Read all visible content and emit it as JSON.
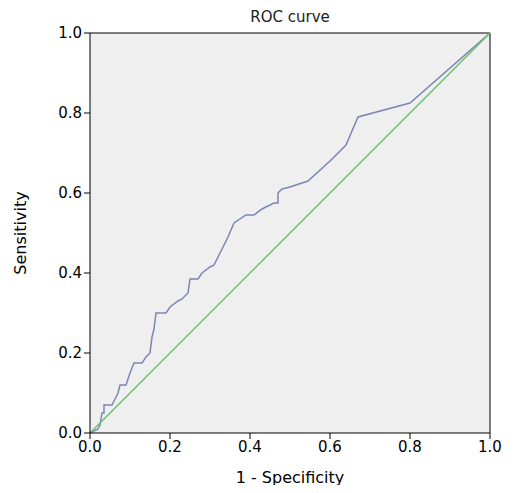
{
  "chart_data": {
    "type": "line",
    "title": "ROC curve",
    "x_label": "1 - Specificity",
    "y_label": "Sensitivity",
    "xlim": [
      0,
      1
    ],
    "ylim": [
      0,
      1
    ],
    "xticks": [
      {
        "value": 0,
        "label": "0.0"
      },
      0.2,
      0.4,
      0.6,
      0.8,
      {
        "value": 1,
        "label": "1.0"
      }
    ],
    "yticks": [
      {
        "value": 0,
        "label": "0.0"
      },
      0.2,
      0.4,
      0.6,
      0.8,
      {
        "value": 1,
        "label": "1.0"
      }
    ],
    "grid": false,
    "series": [
      {
        "color": "#7b86b6",
        "x": [
          0.0,
          0.02,
          0.025,
          0.03,
          0.035,
          0.035,
          0.055,
          0.06,
          0.065,
          0.07,
          0.075,
          0.09,
          0.1,
          0.11,
          0.13,
          0.14,
          0.15,
          0.155,
          0.16,
          0.165,
          0.19,
          0.2,
          0.22,
          0.23,
          0.245,
          0.25,
          0.27,
          0.28,
          0.3,
          0.31,
          0.33,
          0.345,
          0.36,
          0.39,
          0.41,
          0.43,
          0.46,
          0.47,
          0.47,
          0.48,
          0.5,
          0.545,
          0.6,
          0.64,
          0.67,
          0.8,
          1.0
        ],
        "values": [
          0.0,
          0.01,
          0.02,
          0.05,
          0.05,
          0.07,
          0.07,
          0.08,
          0.09,
          0.1,
          0.12,
          0.12,
          0.15,
          0.175,
          0.175,
          0.19,
          0.2,
          0.24,
          0.26,
          0.3,
          0.3,
          0.315,
          0.33,
          0.335,
          0.35,
          0.385,
          0.385,
          0.4,
          0.415,
          0.42,
          0.46,
          0.49,
          0.525,
          0.545,
          0.545,
          0.56,
          0.575,
          0.575,
          0.6,
          0.61,
          0.615,
          0.63,
          0.68,
          0.72,
          0.79,
          0.825,
          1.0
        ]
      },
      {
        "color": "#6cc16c",
        "x": [
          0,
          1
        ],
        "values": [
          0,
          1
        ]
      }
    ]
  }
}
